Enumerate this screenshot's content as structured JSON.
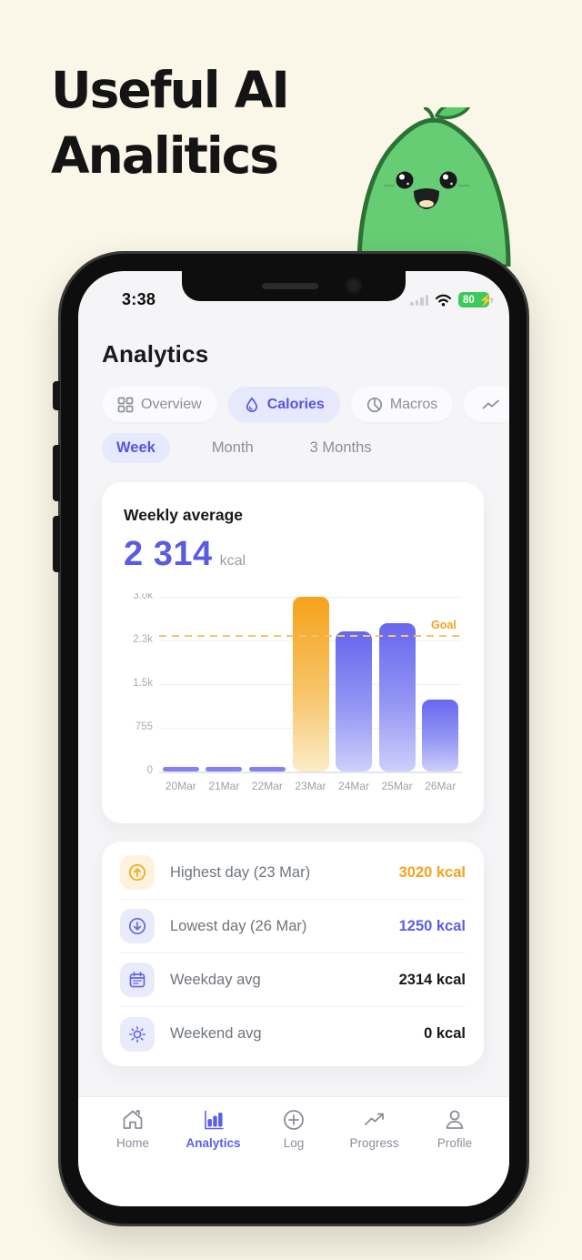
{
  "hero": {
    "title_line1": "Useful AI",
    "title_line2": "Analitics"
  },
  "mascot": {
    "name": "green-pear-character",
    "body_color": "#67CD75",
    "outline_color": "#2B7334"
  },
  "status_bar": {
    "time": "3:38",
    "battery_percent": "80"
  },
  "app": {
    "title": "Analytics",
    "tabs": [
      {
        "label": "Overview",
        "icon": "grid-icon",
        "active": false
      },
      {
        "label": "Calories",
        "icon": "flame-icon",
        "active": true
      },
      {
        "label": "Macros",
        "icon": "pie-icon",
        "active": false
      },
      {
        "label": "",
        "icon": "trend-icon",
        "active": false
      }
    ],
    "ranges": [
      {
        "label": "Week",
        "active": true
      },
      {
        "label": "Month",
        "active": false
      },
      {
        "label": "3 Months",
        "active": false
      }
    ],
    "summary": {
      "label": "Weekly average",
      "value": "2 314",
      "unit": "kcal"
    },
    "chart_data": {
      "type": "bar",
      "title": "Weekly average",
      "xlabel": "",
      "ylabel": "kcal",
      "categories": [
        "20Mar",
        "21Mar",
        "22Mar",
        "23Mar",
        "24Mar",
        "25Mar",
        "26Mar"
      ],
      "values": [
        0,
        0,
        0,
        3020,
        2420,
        2566,
        1250
      ],
      "bar_colors": [
        "purple",
        "purple",
        "purple",
        "orange",
        "purple",
        "purple",
        "purple"
      ],
      "goal": {
        "label": "Goal",
        "value": 2350
      },
      "yticks": [
        {
          "v": 0,
          "label": "0"
        },
        {
          "v": 755,
          "label": "755"
        },
        {
          "v": 1510,
          "label": "1.5k"
        },
        {
          "v": 2265,
          "label": "2.3k"
        },
        {
          "v": 3020,
          "label": "3.0k"
        }
      ],
      "ylim": [
        0,
        3020
      ],
      "grid": true,
      "legend": false
    },
    "stats": [
      {
        "icon": "arrow-up-circle-icon",
        "label": "Highest day (23 Mar)",
        "value": "3020 kcal",
        "value_color": "#F5A21C",
        "icon_tone": "cream"
      },
      {
        "icon": "arrow-down-circle-icon",
        "label": "Lowest day (26 Mar)",
        "value": "1250 kcal",
        "value_color": "#5B5FE8",
        "icon_tone": "lav"
      },
      {
        "icon": "calendar-icon",
        "label": "Weekday avg",
        "value": "2314 kcal",
        "value_color": "#16181C",
        "icon_tone": "lav"
      },
      {
        "icon": "sun-icon",
        "label": "Weekend avg",
        "value": "0 kcal",
        "value_color": "#16181C",
        "icon_tone": "lav"
      }
    ],
    "nav": [
      {
        "label": "Home",
        "icon": "home-icon",
        "active": false
      },
      {
        "label": "Analytics",
        "icon": "bar-chart-icon",
        "active": true
      },
      {
        "label": "Log",
        "icon": "plus-circle-icon",
        "active": false
      },
      {
        "label": "Progress",
        "icon": "trend-arrow-icon",
        "active": false
      },
      {
        "label": "Profile",
        "icon": "person-icon",
        "active": false
      }
    ]
  },
  "colors": {
    "page_background": "#FAF6E8",
    "screen_background": "#F5F5F7",
    "accent_indigo": "#5B5FE8",
    "accent_orange": "#F5A21C",
    "battery_green": "#3EC95E",
    "bar_purple_top": "#6767EE",
    "bar_purple_bottom": "#CDCFFB",
    "bar_orange_top": "#F5A31B",
    "bar_orange_bottom": "#FBEDC6",
    "goal_line": "#F6C36A"
  }
}
